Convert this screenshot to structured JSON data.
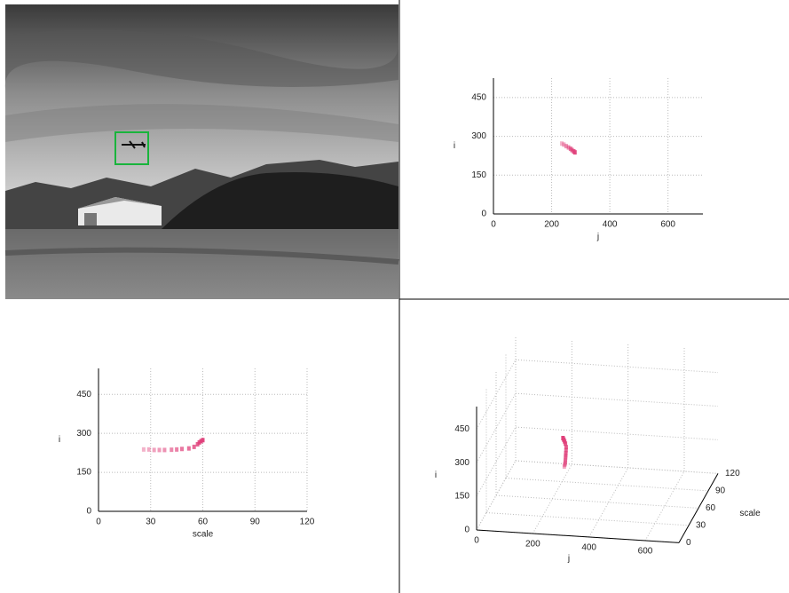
{
  "chart_data": [
    {
      "type": "scatter",
      "x_label": "j",
      "y_label": "i",
      "x": [
        235,
        242,
        250,
        258,
        265,
        270,
        276,
        280
      ],
      "y": [
        272,
        268,
        262,
        257,
        252,
        247,
        242,
        238
      ],
      "xlim": [
        0,
        720
      ],
      "ylim": [
        0,
        525
      ],
      "xticks": [
        0,
        200,
        400,
        600
      ],
      "yticks": [
        0,
        150,
        300,
        450
      ],
      "grid": true,
      "color": "#e0407a"
    },
    {
      "type": "scatter",
      "x_label": "scale",
      "y_label": "i",
      "x": [
        26,
        29,
        32,
        35,
        38,
        42,
        45,
        48,
        52,
        55,
        57,
        58,
        59,
        60
      ],
      "y": [
        238,
        238,
        236,
        236,
        236,
        237,
        238,
        240,
        242,
        248,
        258,
        265,
        270,
        274
      ],
      "xlim": [
        0,
        120
      ],
      "ylim": [
        0,
        550
      ],
      "xticks": [
        0,
        30,
        60,
        90,
        120
      ],
      "yticks": [
        0,
        150,
        300,
        450
      ],
      "grid": true,
      "color": "#e0407a"
    },
    {
      "type": "scatter3d",
      "x_label": "j",
      "y_label": "scale",
      "z_label": "i",
      "x": [
        238,
        242,
        246,
        250,
        255,
        258,
        262,
        265,
        268,
        272,
        275,
        278,
        280,
        282
      ],
      "y": [
        60,
        59,
        58,
        57,
        55,
        52,
        48,
        45,
        42,
        38,
        35,
        32,
        29,
        26
      ],
      "z": [
        274,
        270,
        265,
        258,
        248,
        242,
        240,
        238,
        237,
        236,
        236,
        236,
        238,
        238
      ],
      "xlim": [
        0,
        720
      ],
      "ylim": [
        0,
        120
      ],
      "zlim": [
        0,
        550
      ],
      "xticks": [
        0,
        200,
        400,
        600
      ],
      "yticks": [
        0,
        30,
        60,
        90,
        120
      ],
      "zticks": [
        0,
        150,
        300,
        450
      ],
      "grid": true,
      "color": "#e0407a"
    }
  ]
}
